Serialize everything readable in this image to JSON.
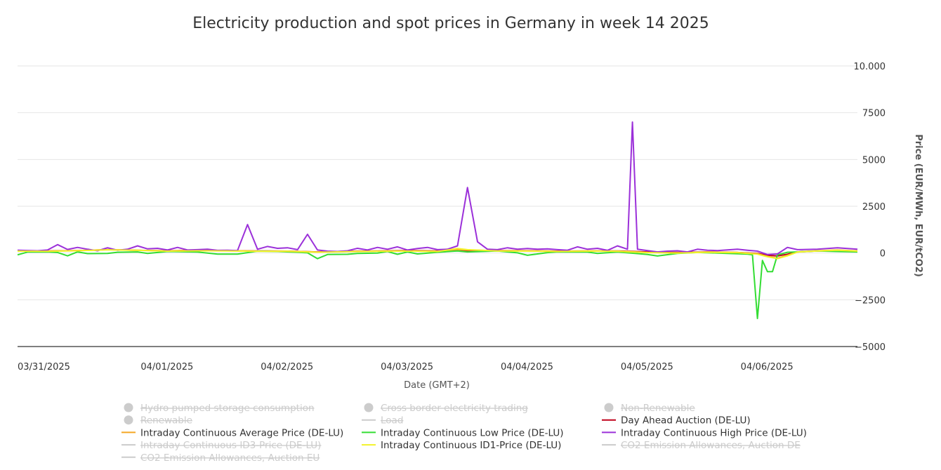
{
  "chart_data": {
    "type": "line",
    "title": "Electricity production and spot prices in Germany in week 14 2025",
    "xlabel": "Date (GMT+2)",
    "ylabel": "Price (EUR/MWh, EUR/tCO2)",
    "ylim": [
      -5000,
      10000
    ],
    "yticks": [
      {
        "value": 10000,
        "label": "10.000"
      },
      {
        "value": 7500,
        "label": "7500"
      },
      {
        "value": 5000,
        "label": "5000"
      },
      {
        "value": 2500,
        "label": "2500"
      },
      {
        "value": 0,
        "label": "0"
      },
      {
        "value": -2500,
        "label": "−2500"
      },
      {
        "value": -5000,
        "label": "−5000"
      }
    ],
    "xlim": [
      0,
      168
    ],
    "xticks": [
      {
        "x": 0,
        "label": "03/31/2025"
      },
      {
        "x": 24,
        "label": "04/01/2025"
      },
      {
        "x": 48,
        "label": "04/02/2025"
      },
      {
        "x": 72,
        "label": "04/03/2025"
      },
      {
        "x": 96,
        "label": "04/04/2025"
      },
      {
        "x": 120,
        "label": "04/05/2025"
      },
      {
        "x": 144,
        "label": "04/06/2025"
      }
    ],
    "grid": true,
    "legend_position": "bottom",
    "series": [
      {
        "name": "Day Ahead Auction (DE-LU)",
        "color": "#c0001a",
        "visible": true,
        "points": [
          [
            0,
            100
          ],
          [
            6,
            110
          ],
          [
            12,
            130
          ],
          [
            18,
            180
          ],
          [
            24,
            140
          ],
          [
            30,
            120
          ],
          [
            36,
            150
          ],
          [
            42,
            120
          ],
          [
            48,
            110
          ],
          [
            54,
            100
          ],
          [
            60,
            60
          ],
          [
            66,
            90
          ],
          [
            72,
            110
          ],
          [
            78,
            130
          ],
          [
            84,
            110
          ],
          [
            90,
            120
          ],
          [
            96,
            130
          ],
          [
            102,
            120
          ],
          [
            108,
            100
          ],
          [
            114,
            110
          ],
          [
            120,
            110
          ],
          [
            126,
            60
          ],
          [
            132,
            30
          ],
          [
            138,
            60
          ],
          [
            144,
            30
          ],
          [
            148,
            -20
          ],
          [
            150,
            -120
          ],
          [
            152,
            -160
          ],
          [
            154,
            -60
          ],
          [
            156,
            60
          ],
          [
            160,
            110
          ],
          [
            164,
            130
          ],
          [
            168,
            110
          ]
        ]
      },
      {
        "name": "Intraday Continuous Average Price (DE-LU)",
        "color": "#f5a623",
        "visible": true,
        "points": [
          [
            0,
            110
          ],
          [
            6,
            100
          ],
          [
            12,
            130
          ],
          [
            18,
            180
          ],
          [
            24,
            150
          ],
          [
            30,
            110
          ],
          [
            36,
            140
          ],
          [
            42,
            130
          ],
          [
            48,
            100
          ],
          [
            54,
            100
          ],
          [
            60,
            50
          ],
          [
            66,
            80
          ],
          [
            72,
            100
          ],
          [
            78,
            110
          ],
          [
            84,
            90
          ],
          [
            88,
            180
          ],
          [
            90,
            160
          ],
          [
            96,
            120
          ],
          [
            102,
            110
          ],
          [
            108,
            90
          ],
          [
            114,
            110
          ],
          [
            120,
            100
          ],
          [
            126,
            30
          ],
          [
            132,
            10
          ],
          [
            138,
            50
          ],
          [
            144,
            30
          ],
          [
            148,
            -40
          ],
          [
            150,
            -180
          ],
          [
            152,
            -280
          ],
          [
            154,
            -120
          ],
          [
            156,
            60
          ],
          [
            160,
            120
          ],
          [
            164,
            160
          ],
          [
            168,
            110
          ]
        ]
      },
      {
        "name": "Intraday Continuous Low Price (DE-LU)",
        "color": "#33dd33",
        "visible": true,
        "points": [
          [
            0,
            -100
          ],
          [
            2,
            50
          ],
          [
            6,
            60
          ],
          [
            8,
            30
          ],
          [
            10,
            -150
          ],
          [
            12,
            60
          ],
          [
            14,
            -30
          ],
          [
            18,
            -20
          ],
          [
            20,
            40
          ],
          [
            24,
            60
          ],
          [
            26,
            -20
          ],
          [
            30,
            80
          ],
          [
            36,
            50
          ],
          [
            40,
            -60
          ],
          [
            44,
            -60
          ],
          [
            48,
            100
          ],
          [
            52,
            80
          ],
          [
            56,
            40
          ],
          [
            58,
            10
          ],
          [
            60,
            -300
          ],
          [
            62,
            -80
          ],
          [
            66,
            -70
          ],
          [
            68,
            -20
          ],
          [
            72,
            0
          ],
          [
            74,
            80
          ],
          [
            76,
            -70
          ],
          [
            78,
            60
          ],
          [
            80,
            -50
          ],
          [
            84,
            40
          ],
          [
            88,
            110
          ],
          [
            90,
            60
          ],
          [
            96,
            110
          ],
          [
            100,
            10
          ],
          [
            102,
            -120
          ],
          [
            104,
            -50
          ],
          [
            106,
            20
          ],
          [
            108,
            60
          ],
          [
            114,
            50
          ],
          [
            116,
            -20
          ],
          [
            120,
            50
          ],
          [
            124,
            -30
          ],
          [
            126,
            -80
          ],
          [
            128,
            -160
          ],
          [
            132,
            -20
          ],
          [
            136,
            30
          ],
          [
            140,
            0
          ],
          [
            144,
            -40
          ],
          [
            146,
            -60
          ],
          [
            147,
            -100
          ],
          [
            148,
            -3500
          ],
          [
            149,
            -400
          ],
          [
            150,
            -1000
          ],
          [
            151,
            -1000
          ],
          [
            152,
            -100
          ],
          [
            154,
            40
          ],
          [
            156,
            60
          ],
          [
            160,
            110
          ],
          [
            164,
            80
          ],
          [
            168,
            60
          ]
        ]
      },
      {
        "name": "Intraday Continuous High Price (DE-LU)",
        "color": "#9b30d9",
        "visible": true,
        "points": [
          [
            0,
            150
          ],
          [
            4,
            120
          ],
          [
            6,
            160
          ],
          [
            8,
            450
          ],
          [
            10,
            190
          ],
          [
            12,
            300
          ],
          [
            14,
            200
          ],
          [
            16,
            120
          ],
          [
            18,
            280
          ],
          [
            20,
            150
          ],
          [
            22,
            200
          ],
          [
            24,
            380
          ],
          [
            26,
            220
          ],
          [
            28,
            250
          ],
          [
            30,
            160
          ],
          [
            32,
            300
          ],
          [
            34,
            160
          ],
          [
            36,
            180
          ],
          [
            38,
            200
          ],
          [
            40,
            140
          ],
          [
            42,
            150
          ],
          [
            44,
            130
          ],
          [
            46,
            1520
          ],
          [
            48,
            200
          ],
          [
            50,
            350
          ],
          [
            52,
            250
          ],
          [
            54,
            280
          ],
          [
            56,
            180
          ],
          [
            58,
            1000
          ],
          [
            60,
            160
          ],
          [
            62,
            100
          ],
          [
            64,
            80
          ],
          [
            66,
            120
          ],
          [
            68,
            250
          ],
          [
            70,
            160
          ],
          [
            72,
            300
          ],
          [
            74,
            200
          ],
          [
            76,
            330
          ],
          [
            78,
            160
          ],
          [
            80,
            240
          ],
          [
            82,
            300
          ],
          [
            84,
            180
          ],
          [
            86,
            200
          ],
          [
            88,
            380
          ],
          [
            90,
            3500
          ],
          [
            92,
            600
          ],
          [
            94,
            200
          ],
          [
            96,
            180
          ],
          [
            98,
            280
          ],
          [
            100,
            200
          ],
          [
            102,
            240
          ],
          [
            104,
            200
          ],
          [
            106,
            220
          ],
          [
            108,
            180
          ],
          [
            110,
            150
          ],
          [
            112,
            330
          ],
          [
            114,
            200
          ],
          [
            116,
            250
          ],
          [
            118,
            140
          ],
          [
            120,
            380
          ],
          [
            122,
            200
          ],
          [
            123,
            7000
          ],
          [
            124,
            200
          ],
          [
            126,
            130
          ],
          [
            128,
            60
          ],
          [
            130,
            100
          ],
          [
            132,
            120
          ],
          [
            134,
            60
          ],
          [
            136,
            200
          ],
          [
            138,
            150
          ],
          [
            140,
            130
          ],
          [
            144,
            200
          ],
          [
            146,
            150
          ],
          [
            148,
            100
          ],
          [
            150,
            -80
          ],
          [
            152,
            -50
          ],
          [
            154,
            300
          ],
          [
            156,
            180
          ],
          [
            160,
            200
          ],
          [
            164,
            280
          ],
          [
            168,
            200
          ]
        ]
      },
      {
        "name": "Intraday Continuous ID1-Price (DE-LU)",
        "color": "#f2f22a",
        "visible": true,
        "points": [
          [
            0,
            100
          ],
          [
            6,
            90
          ],
          [
            12,
            120
          ],
          [
            18,
            170
          ],
          [
            24,
            140
          ],
          [
            30,
            100
          ],
          [
            36,
            120
          ],
          [
            42,
            110
          ],
          [
            48,
            90
          ],
          [
            54,
            90
          ],
          [
            60,
            40
          ],
          [
            66,
            70
          ],
          [
            72,
            90
          ],
          [
            78,
            100
          ],
          [
            84,
            80
          ],
          [
            88,
            240
          ],
          [
            90,
            180
          ],
          [
            96,
            110
          ],
          [
            102,
            100
          ],
          [
            108,
            80
          ],
          [
            114,
            100
          ],
          [
            120,
            90
          ],
          [
            126,
            20
          ],
          [
            132,
            0
          ],
          [
            138,
            40
          ],
          [
            144,
            20
          ],
          [
            148,
            -60
          ],
          [
            150,
            -200
          ],
          [
            152,
            -300
          ],
          [
            154,
            -150
          ],
          [
            156,
            50
          ],
          [
            160,
            110
          ],
          [
            164,
            150
          ],
          [
            168,
            100
          ]
        ]
      }
    ],
    "legend": [
      {
        "name": "Hydro pumped storage consumption",
        "visible": false,
        "symbol": "circle"
      },
      {
        "name": "Cross border electricity trading",
        "visible": false,
        "symbol": "circle"
      },
      {
        "name": "Non-Renewable",
        "visible": false,
        "symbol": "circle"
      },
      {
        "name": "Renewable",
        "visible": false,
        "symbol": "circle"
      },
      {
        "name": "Load",
        "visible": false,
        "symbol": "line"
      },
      {
        "name": "Day Ahead Auction (DE-LU)",
        "visible": true,
        "symbol": "line",
        "color": "#c0001a"
      },
      {
        "name": "Intraday Continuous Average Price (DE-LU)",
        "visible": true,
        "symbol": "line",
        "color": "#f5a623"
      },
      {
        "name": "Intraday Continuous Low Price (DE-LU)",
        "visible": true,
        "symbol": "line",
        "color": "#33dd33"
      },
      {
        "name": "Intraday Continuous High Price (DE-LU)",
        "visible": true,
        "symbol": "line",
        "color": "#9b30d9"
      },
      {
        "name": "Intraday Continuous ID3-Price (DE-LU)",
        "visible": false,
        "symbol": "line"
      },
      {
        "name": "Intraday Continuous ID1-Price (DE-LU)",
        "visible": true,
        "symbol": "line",
        "color": "#f2f22a"
      },
      {
        "name": "CO2 Emission Allowances, Auction DE",
        "visible": false,
        "symbol": "line"
      },
      {
        "name": "CO2 Emission Allowances, Auction EU",
        "visible": false,
        "symbol": "line"
      }
    ],
    "colors": {
      "hidden": "#cccccc",
      "visible_text": "#333333",
      "grid": "#e6e6e6",
      "axis": "#333333"
    }
  }
}
